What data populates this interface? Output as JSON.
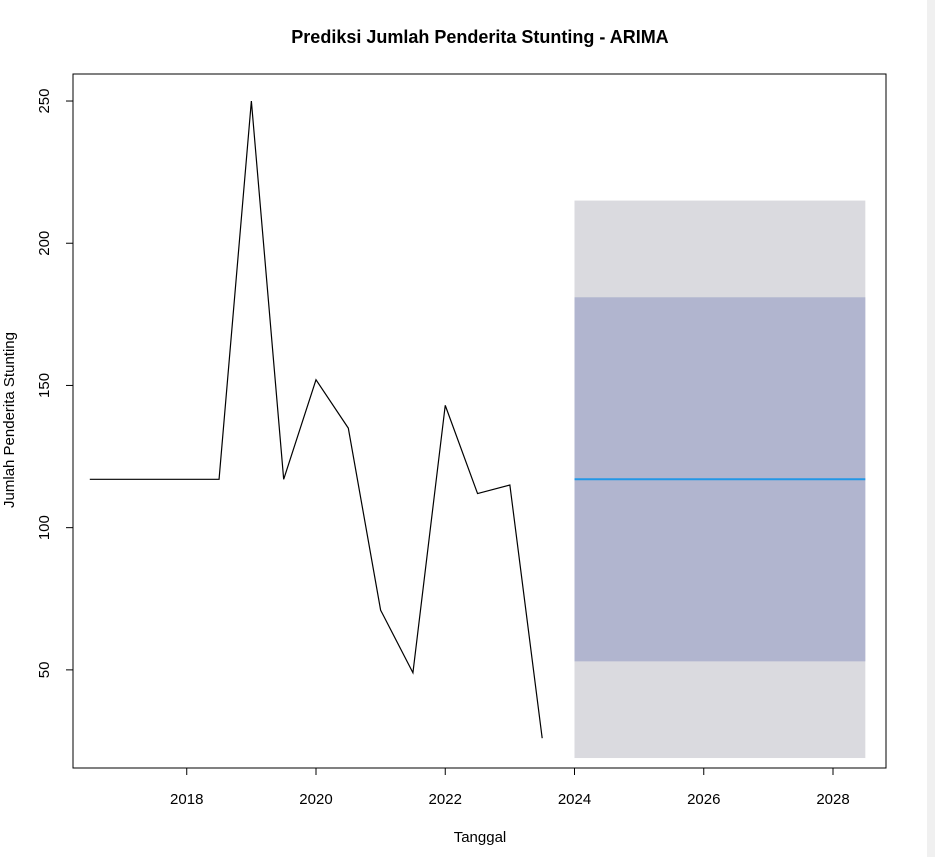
{
  "chart_data": {
    "type": "line",
    "title": "Prediksi Jumlah Penderita Stunting - ARIMA",
    "xlabel": "Tanggal",
    "ylabel": "Jumlah Penderita Stunting",
    "xlim": [
      2016.24,
      2028.82
    ],
    "ylim": [
      15.5,
      259.5
    ],
    "x_ticks": [
      2018,
      2020,
      2022,
      2024,
      2026,
      2028
    ],
    "y_ticks": [
      50,
      100,
      150,
      200,
      250
    ],
    "grid": false,
    "series": [
      {
        "x": [
          2016.5,
          2017.0,
          2017.5,
          2018.0,
          2018.5,
          2019.0,
          2019.5,
          2020.0,
          2020.5,
          2021.0,
          2021.5,
          2022.0,
          2022.5,
          2023.0,
          2023.5
        ],
        "values": [
          117,
          117,
          117,
          117,
          117,
          250,
          117,
          152,
          135,
          71,
          49,
          143,
          112,
          115,
          26
        ],
        "color": "#000000"
      }
    ],
    "forecast": {
      "x": [
        2024.0,
        2028.5
      ],
      "mean": 117,
      "lo80": 53,
      "hi80": 181,
      "lo95": 19,
      "hi95": 215,
      "mean_color": "#2297e6",
      "band80_color": "#b1b5cf",
      "band95_color": "#dadadf"
    }
  }
}
